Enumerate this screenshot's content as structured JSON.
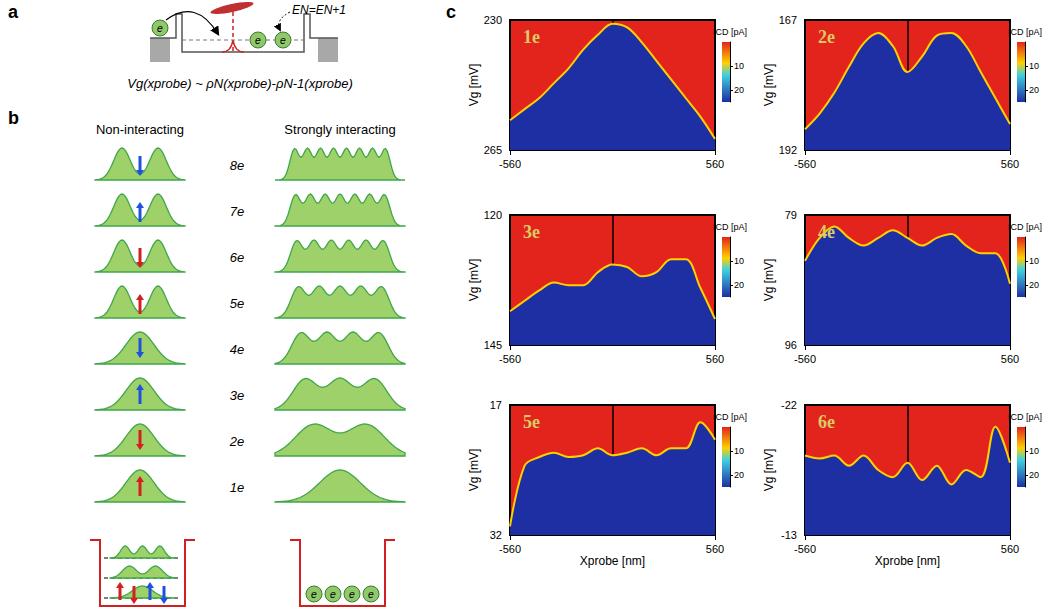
{
  "panels": {
    "a": {
      "label": "a",
      "level_label": "EN=EN+1",
      "formula": "Vg(xprobe) ~ ρN(xprobe)-ρN-1(xprobe)",
      "electron": "e"
    },
    "b": {
      "label": "b",
      "left_title": "Non-interacting",
      "right_title": "Strongly interacting",
      "electron": "e",
      "rows": [
        {
          "label": "8e",
          "arrow": "down",
          "color": "#2050e0"
        },
        {
          "label": "7e",
          "arrow": "up",
          "color": "#2050e0"
        },
        {
          "label": "6e",
          "arrow": "down",
          "color": "#d02020"
        },
        {
          "label": "5e",
          "arrow": "up",
          "color": "#d02020"
        },
        {
          "label": "4e",
          "arrow": "down",
          "color": "#2050e0"
        },
        {
          "label": "3e",
          "arrow": "up",
          "color": "#2050e0"
        },
        {
          "label": "2e",
          "arrow": "down",
          "color": "#d02020"
        },
        {
          "label": "1e",
          "arrow": "up",
          "color": "#d02020"
        }
      ]
    },
    "c": {
      "label": "c"
    }
  },
  "chart_data": [
    {
      "type": "line",
      "title": "1e",
      "x": [
        -560,
        -480,
        -400,
        -320,
        -240,
        -160,
        -80,
        0,
        80,
        160,
        240,
        320,
        400,
        480,
        560
      ],
      "values": [
        257,
        254,
        251,
        247,
        243,
        238,
        234,
        231,
        232,
        236,
        241,
        246,
        251,
        256,
        262
      ],
      "xlim": [
        -560,
        560
      ],
      "xticks": [
        -560,
        560
      ],
      "ylim": [
        230,
        265
      ],
      "yticks": [
        230,
        265
      ],
      "y_label": "Vg [mV]",
      "color_bar": {
        "label": "ICD [pA]",
        "range": [
          0,
          25
        ],
        "ticks": [
          10,
          20
        ]
      }
    },
    {
      "type": "line",
      "title": "2e",
      "x": [
        -560,
        -480,
        -400,
        -320,
        -240,
        -160,
        -80,
        0,
        80,
        160,
        240,
        320,
        400,
        480,
        560
      ],
      "values": [
        188,
        185,
        181,
        176,
        171.5,
        169.5,
        172,
        177,
        174,
        170,
        169.5,
        172,
        177,
        182,
        187
      ],
      "xlim": [
        -560,
        560
      ],
      "xticks": [
        -560,
        560
      ],
      "ylim": [
        167,
        192
      ],
      "yticks": [
        167,
        192
      ],
      "y_label": "Vg [mV]",
      "color_bar": {
        "label": "ICD [pA]",
        "range": [
          0,
          25
        ],
        "ticks": [
          10,
          20
        ]
      }
    },
    {
      "type": "line",
      "title": "3e",
      "x": [
        -560,
        -480,
        -400,
        -320,
        -240,
        -160,
        -80,
        0,
        80,
        160,
        240,
        320,
        400,
        480,
        560
      ],
      "values": [
        138.5,
        136.5,
        134.5,
        133,
        133.5,
        133.5,
        131,
        129.5,
        130,
        131.8,
        131,
        128.5,
        128.5,
        134,
        140
      ],
      "xlim": [
        -560,
        560
      ],
      "xticks": [
        -560,
        560
      ],
      "ylim": [
        120,
        145
      ],
      "yticks": [
        120,
        145
      ],
      "y_label": "Vg [mV]",
      "color_bar": {
        "label": "ICD [pA]",
        "range": [
          0,
          25
        ],
        "ticks": [
          10,
          20
        ]
      }
    },
    {
      "type": "line",
      "title": "4e",
      "x": [
        -560,
        -480,
        -400,
        -320,
        -240,
        -160,
        -80,
        0,
        80,
        160,
        240,
        320,
        400,
        480,
        560
      ],
      "values": [
        85,
        82,
        80.5,
        82,
        83,
        82,
        81,
        82,
        83,
        82,
        81.5,
        83,
        84,
        84,
        88
      ],
      "xlim": [
        -560,
        560
      ],
      "xticks": [
        -560,
        560
      ],
      "ylim": [
        79,
        96
      ],
      "yticks": [
        79,
        96
      ],
      "y_label": "Vg [mV]",
      "color_bar": {
        "label": "ICD [pA]",
        "range": [
          0,
          25
        ],
        "ticks": [
          10,
          20
        ]
      }
    },
    {
      "type": "line",
      "title": "5e",
      "x": [
        -560,
        -480,
        -400,
        -320,
        -240,
        -160,
        -80,
        0,
        80,
        160,
        240,
        320,
        400,
        480,
        560
      ],
      "values": [
        31,
        24,
        23,
        22.5,
        23,
        22.8,
        22,
        22.8,
        22.5,
        22,
        22.8,
        22,
        22,
        19,
        21
      ],
      "xlim": [
        -560,
        560
      ],
      "xticks": [
        -560,
        560
      ],
      "ylim": [
        17,
        32
      ],
      "yticks": [
        17,
        32
      ],
      "y_label": "Vg [mV]",
      "x_label": "Xprobe [nm]",
      "color_bar": {
        "label": "ICD [pA]",
        "range": [
          0,
          25
        ],
        "ticks": [
          10,
          20
        ]
      }
    },
    {
      "type": "line",
      "title": "6e",
      "x": [
        -560,
        -480,
        -400,
        -320,
        -240,
        -160,
        -80,
        0,
        80,
        160,
        240,
        320,
        400,
        480,
        560
      ],
      "values": [
        -18.5,
        -18.3,
        -18.5,
        -17.8,
        -18.5,
        -17.5,
        -17,
        -18,
        -16.8,
        -17.8,
        -16.5,
        -17.5,
        -17,
        -20.5,
        -18
      ],
      "xlim": [
        -560,
        560
      ],
      "xticks": [
        -560,
        560
      ],
      "ylim": [
        -22,
        -13
      ],
      "yticks": [
        -22,
        -13
      ],
      "y_label": "Vg [mV]",
      "x_label": "Xprobe [nm]",
      "color_bar": {
        "label": "ICD [pA]",
        "range": [
          0,
          25
        ],
        "ticks": [
          10,
          20
        ]
      }
    }
  ]
}
